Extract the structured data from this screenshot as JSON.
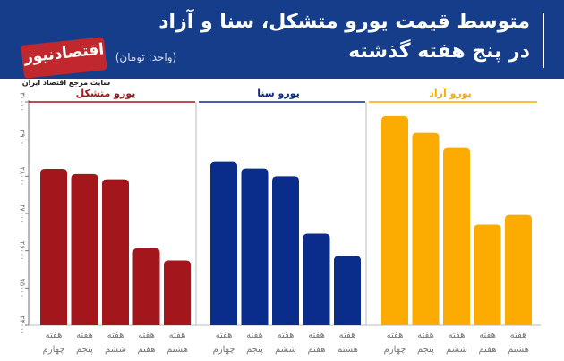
{
  "header": {
    "title_line1": "متوسط قیمت یورو متشکل، سنا و آزاد",
    "title_line2": "در پنج هفته گذشته",
    "unit": "(واحد: تومان)"
  },
  "logo": {
    "name": "اقتصادنیوز",
    "subtitle": "سایت مرجع اقتصاد ایران"
  },
  "colors": {
    "header_bg": "#153d8a",
    "series_motashakkel": "#a3161c",
    "series_sana": "#0a2c8a",
    "series_azad": "#fcab00"
  },
  "chart_data": {
    "type": "bar",
    "categories": [
      "هفته چهارم",
      "هفته پنجم",
      "هفته ششم",
      "هفته هفتم",
      "هفته هشتم"
    ],
    "series": [
      {
        "name": "یورو متشکل",
        "values": [
          28200,
          28060,
          27920,
          26070,
          25740
        ]
      },
      {
        "name": "یورو سنا",
        "values": [
          28400,
          28210,
          28000,
          26460,
          25860
        ]
      },
      {
        "name": "یورو آزاد",
        "values": [
          29620,
          29170,
          28760,
          26700,
          26960
        ]
      }
    ],
    "ylim": [
      24000,
      30000
    ],
    "yticks": [
      "۲۴۰۰۰",
      "۲۵۰۰۰",
      "۲۶۰۰۰",
      "۲۷۰۰۰",
      "۲۸۰۰۰",
      "۲۹۰۰۰",
      "۳۰۰۰۰"
    ],
    "grid": false,
    "legend": "top"
  }
}
